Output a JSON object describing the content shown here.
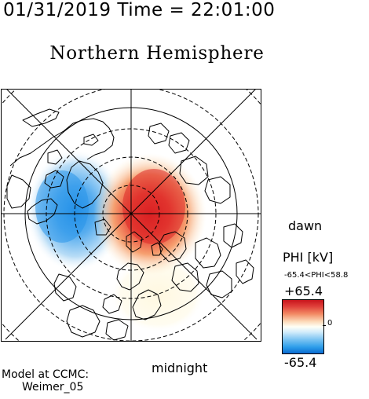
{
  "header": {
    "date_time": "01/31/2019 Time = 22:01:00"
  },
  "title": "Northern Hemisphere",
  "orientation_labels": {
    "right": "dawn",
    "bottom": "midnight"
  },
  "colorbar": {
    "title": "PHI [kV]",
    "range_text": "-65.4<PHI<58.8",
    "max_label": "+65.4",
    "min_label": "-65.4",
    "zero_label": "0",
    "colors": {
      "positive": "#c8141c",
      "neutral": "#ffffff",
      "negative": "#0a6bd0"
    }
  },
  "potential_pattern": {
    "min_kV": -65.4,
    "max_kV": 58.8,
    "positive_cell_side": "dawn",
    "negative_cell_side": "dusk"
  },
  "map": {
    "projection": "polar",
    "latitude_circles": "dashed",
    "features": [
      "coastlines",
      "meridians",
      "latitude circles"
    ]
  },
  "model": {
    "line1": "Model at CCMC:",
    "line2": "Weimer_05"
  }
}
